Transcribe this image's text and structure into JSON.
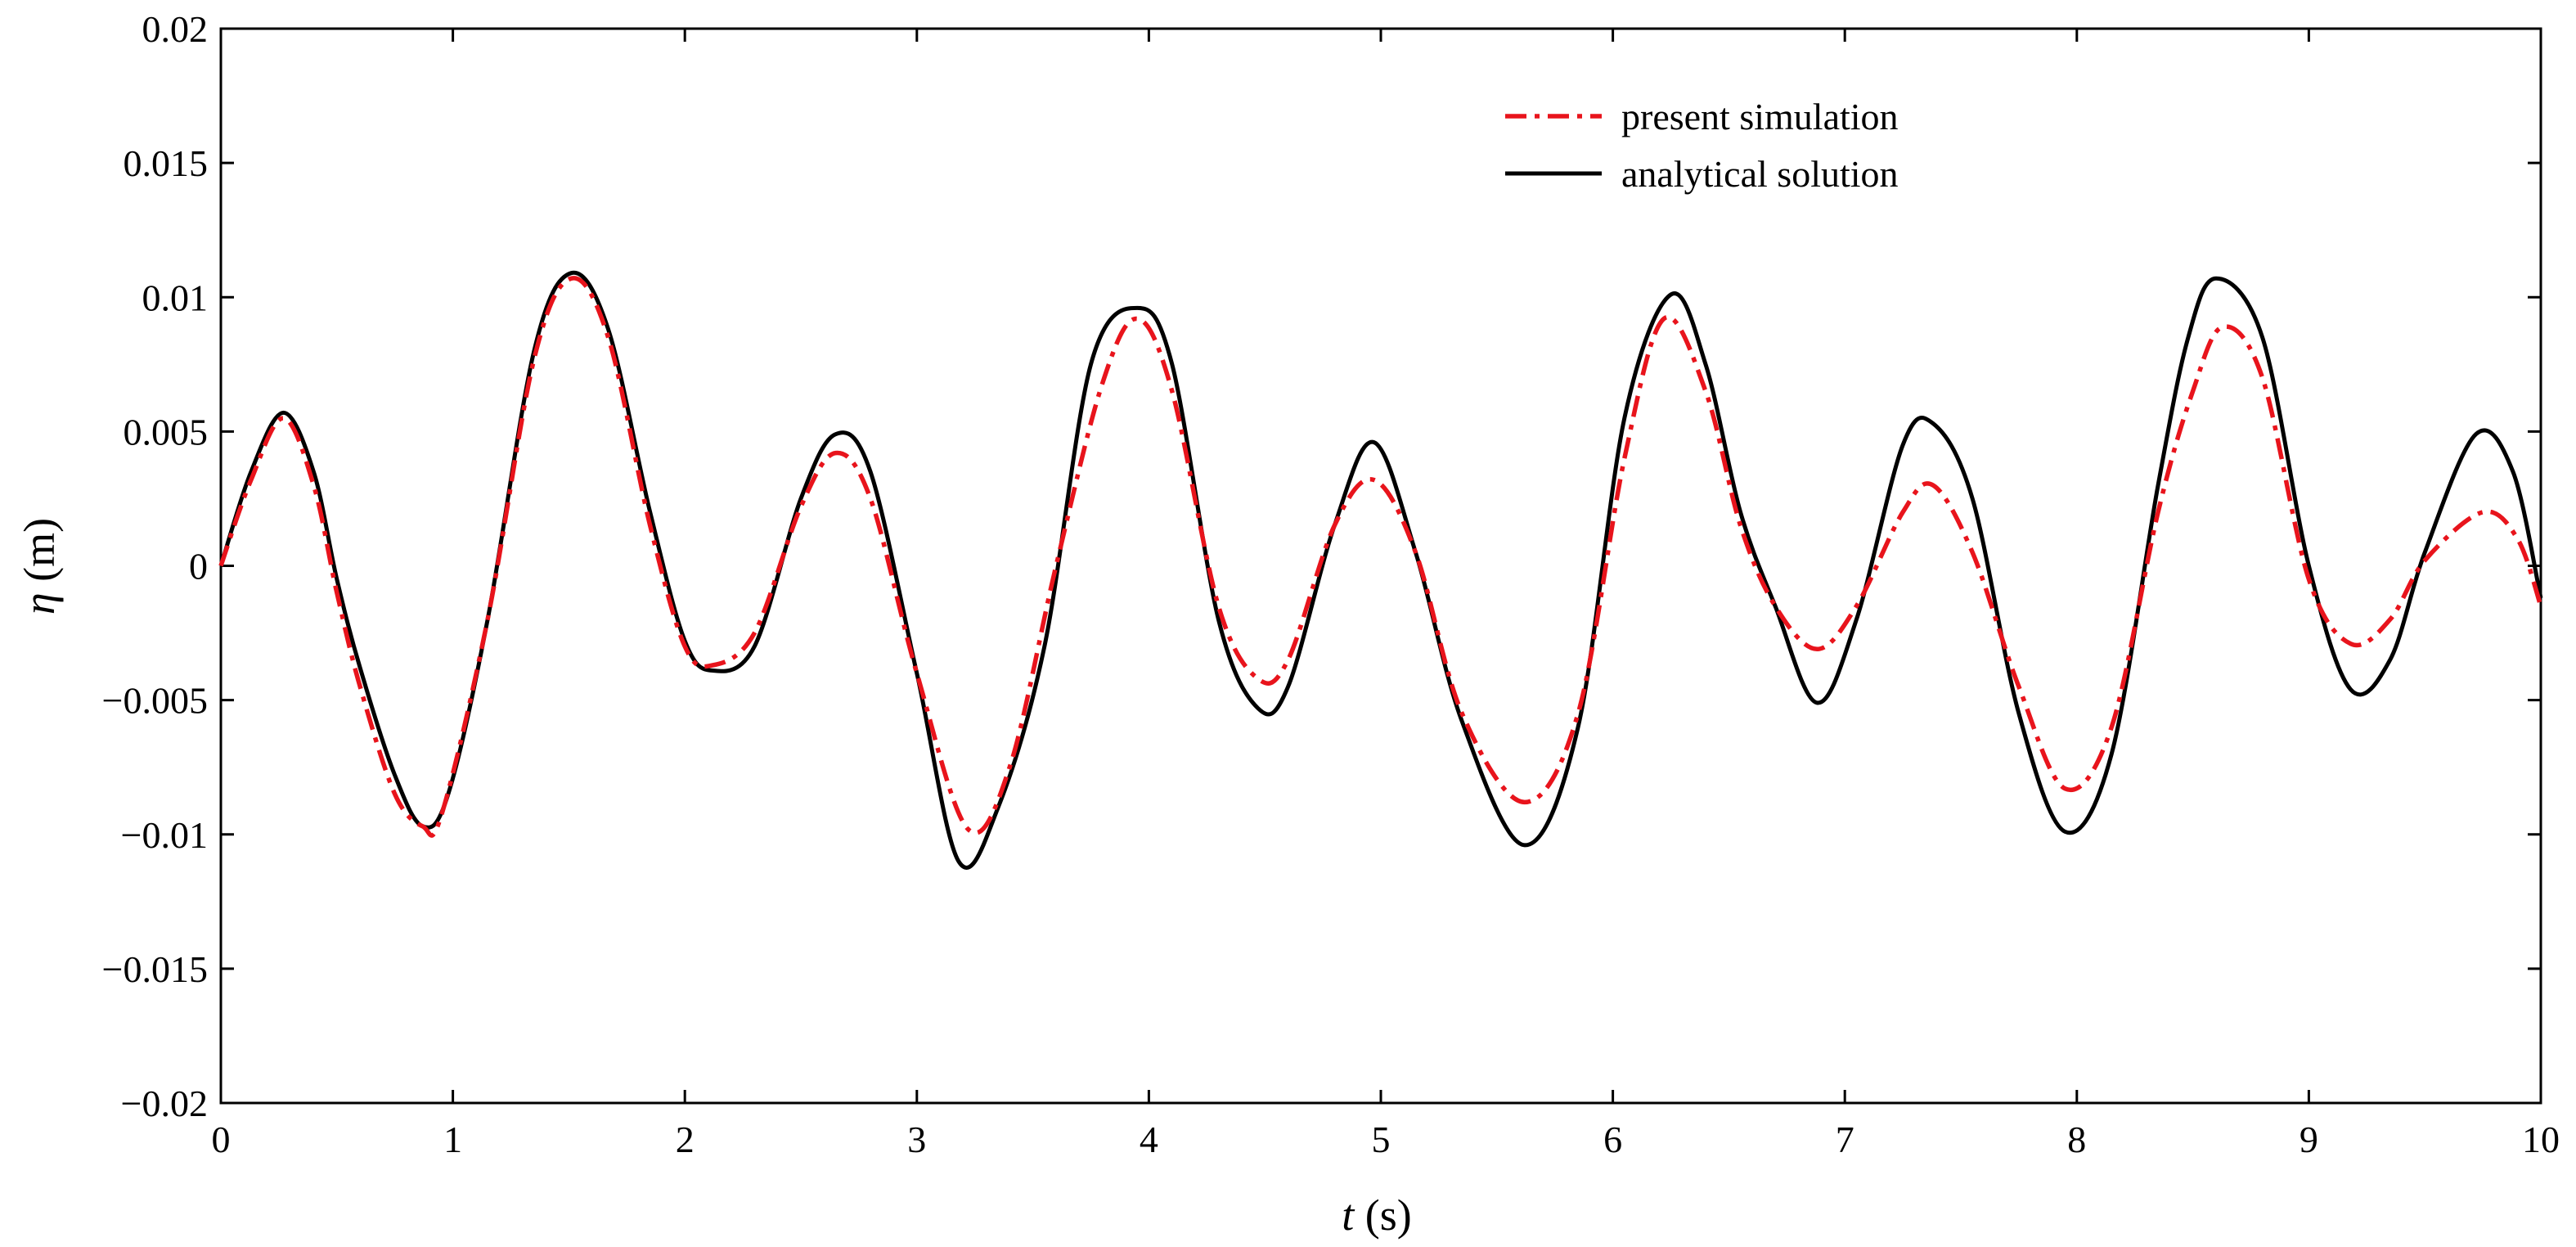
{
  "chart_data": {
    "type": "line",
    "title": "",
    "xlabel": {
      "symbol": "t",
      "unit": "(s)"
    },
    "ylabel": {
      "symbol": "η",
      "unit": "(m)"
    },
    "xlim": [
      0,
      10
    ],
    "ylim": [
      -0.02,
      0.02
    ],
    "xticks": [
      "0",
      "1",
      "2",
      "3",
      "4",
      "5",
      "6",
      "7",
      "8",
      "9",
      "10"
    ],
    "yticks": [
      "0.02",
      "0.015",
      "0.01",
      "0.005",
      "0",
      "−0.005",
      "−0.01",
      "−0.015",
      "−0.02"
    ],
    "grid": false,
    "legend_position": "top-right",
    "series": [
      {
        "name": "present simulation",
        "color": "#e8141c",
        "style": "dash-dot",
        "points": [
          [
            0,
            0
          ],
          [
            0.13,
            0.0032
          ],
          [
            0.27,
            0.0055
          ],
          [
            0.4,
            0.003
          ],
          [
            0.5,
            -0.001
          ],
          [
            0.6,
            -0.0045
          ],
          [
            0.75,
            -0.0085
          ],
          [
            0.87,
            -0.0097
          ],
          [
            0.95,
            -0.0093
          ],
          [
            1.15,
            -0.002
          ],
          [
            1.35,
            0.0077
          ],
          [
            1.51,
            0.0107
          ],
          [
            1.67,
            0.0085
          ],
          [
            1.85,
            0.0015
          ],
          [
            2.0,
            -0.003
          ],
          [
            2.12,
            -0.0037
          ],
          [
            2.3,
            -0.0025
          ],
          [
            2.5,
            0.0022
          ],
          [
            2.65,
            0.0042
          ],
          [
            2.8,
            0.0025
          ],
          [
            3.0,
            -0.004
          ],
          [
            3.22,
            -0.0098
          ],
          [
            3.4,
            -0.0075
          ],
          [
            3.6,
            0.0
          ],
          [
            3.8,
            0.0068
          ],
          [
            3.95,
            0.0092
          ],
          [
            4.1,
            0.0065
          ],
          [
            4.3,
            -0.0015
          ],
          [
            4.47,
            -0.0042
          ],
          [
            4.6,
            -0.0035
          ],
          [
            4.8,
            0.0015
          ],
          [
            4.97,
            0.0032
          ],
          [
            5.15,
            0.0005
          ],
          [
            5.35,
            -0.0055
          ],
          [
            5.62,
            -0.0088
          ],
          [
            5.85,
            -0.0055
          ],
          [
            6.05,
            0.004
          ],
          [
            6.22,
            0.0092
          ],
          [
            6.4,
            0.0065
          ],
          [
            6.55,
            0.0015
          ],
          [
            6.7,
            -0.0015
          ],
          [
            6.88,
            -0.0031
          ],
          [
            7.05,
            -0.0015
          ],
          [
            7.25,
            0.002
          ],
          [
            7.38,
            0.003
          ],
          [
            7.55,
            0.0005
          ],
          [
            7.75,
            -0.0045
          ],
          [
            7.95,
            -0.0083
          ],
          [
            8.15,
            -0.006
          ],
          [
            8.35,
            0.002
          ],
          [
            8.5,
            0.0065
          ],
          [
            8.63,
            0.0089
          ],
          [
            8.8,
            0.007
          ],
          [
            9.0,
            -0.0005
          ],
          [
            9.18,
            -0.0029
          ],
          [
            9.35,
            -0.002
          ],
          [
            9.5,
            0.0002
          ],
          [
            9.75,
            0.002
          ],
          [
            9.9,
            0.001
          ],
          [
            10,
            -0.0015
          ]
        ]
      },
      {
        "name": "analytical solution",
        "color": "#000000",
        "style": "solid",
        "points": [
          [
            0,
            0
          ],
          [
            0.13,
            0.0035
          ],
          [
            0.27,
            0.0057
          ],
          [
            0.4,
            0.0035
          ],
          [
            0.5,
            -0.0005
          ],
          [
            0.6,
            -0.0038
          ],
          [
            0.75,
            -0.0078
          ],
          [
            0.87,
            -0.0097
          ],
          [
            0.98,
            -0.0085
          ],
          [
            1.15,
            -0.002
          ],
          [
            1.35,
            0.008
          ],
          [
            1.51,
            0.0109
          ],
          [
            1.67,
            0.0088
          ],
          [
            1.85,
            0.002
          ],
          [
            2.0,
            -0.0028
          ],
          [
            2.12,
            -0.0039
          ],
          [
            2.3,
            -0.003
          ],
          [
            2.5,
            0.0025
          ],
          [
            2.65,
            0.0049
          ],
          [
            2.8,
            0.0035
          ],
          [
            3.0,
            -0.004
          ],
          [
            3.18,
            -0.011
          ],
          [
            3.35,
            -0.009
          ],
          [
            3.55,
            -0.003
          ],
          [
            3.75,
            0.0075
          ],
          [
            3.95,
            0.0096
          ],
          [
            4.1,
            0.0075
          ],
          [
            4.3,
            -0.002
          ],
          [
            4.47,
            -0.0053
          ],
          [
            4.6,
            -0.0045
          ],
          [
            4.8,
            0.0015
          ],
          [
            4.97,
            0.0046
          ],
          [
            5.15,
            0.0005
          ],
          [
            5.35,
            -0.0058
          ],
          [
            5.62,
            -0.0104
          ],
          [
            5.85,
            -0.006
          ],
          [
            6.05,
            0.0055
          ],
          [
            6.25,
            0.0101
          ],
          [
            6.4,
            0.0075
          ],
          [
            6.55,
            0.002
          ],
          [
            6.7,
            -0.0015
          ],
          [
            6.88,
            -0.0051
          ],
          [
            7.05,
            -0.002
          ],
          [
            7.25,
            0.0045
          ],
          [
            7.38,
            0.0053
          ],
          [
            7.55,
            0.0025
          ],
          [
            7.75,
            -0.0055
          ],
          [
            7.95,
            -0.0099
          ],
          [
            8.15,
            -0.007
          ],
          [
            8.35,
            0.003
          ],
          [
            8.48,
            0.0085
          ],
          [
            8.6,
            0.0107
          ],
          [
            8.8,
            0.0085
          ],
          [
            9.0,
            0.0
          ],
          [
            9.18,
            -0.0046
          ],
          [
            9.35,
            -0.0035
          ],
          [
            9.5,
            0.0005
          ],
          [
            9.72,
            0.0049
          ],
          [
            9.88,
            0.0035
          ],
          [
            10,
            -0.0012
          ]
        ]
      }
    ]
  }
}
